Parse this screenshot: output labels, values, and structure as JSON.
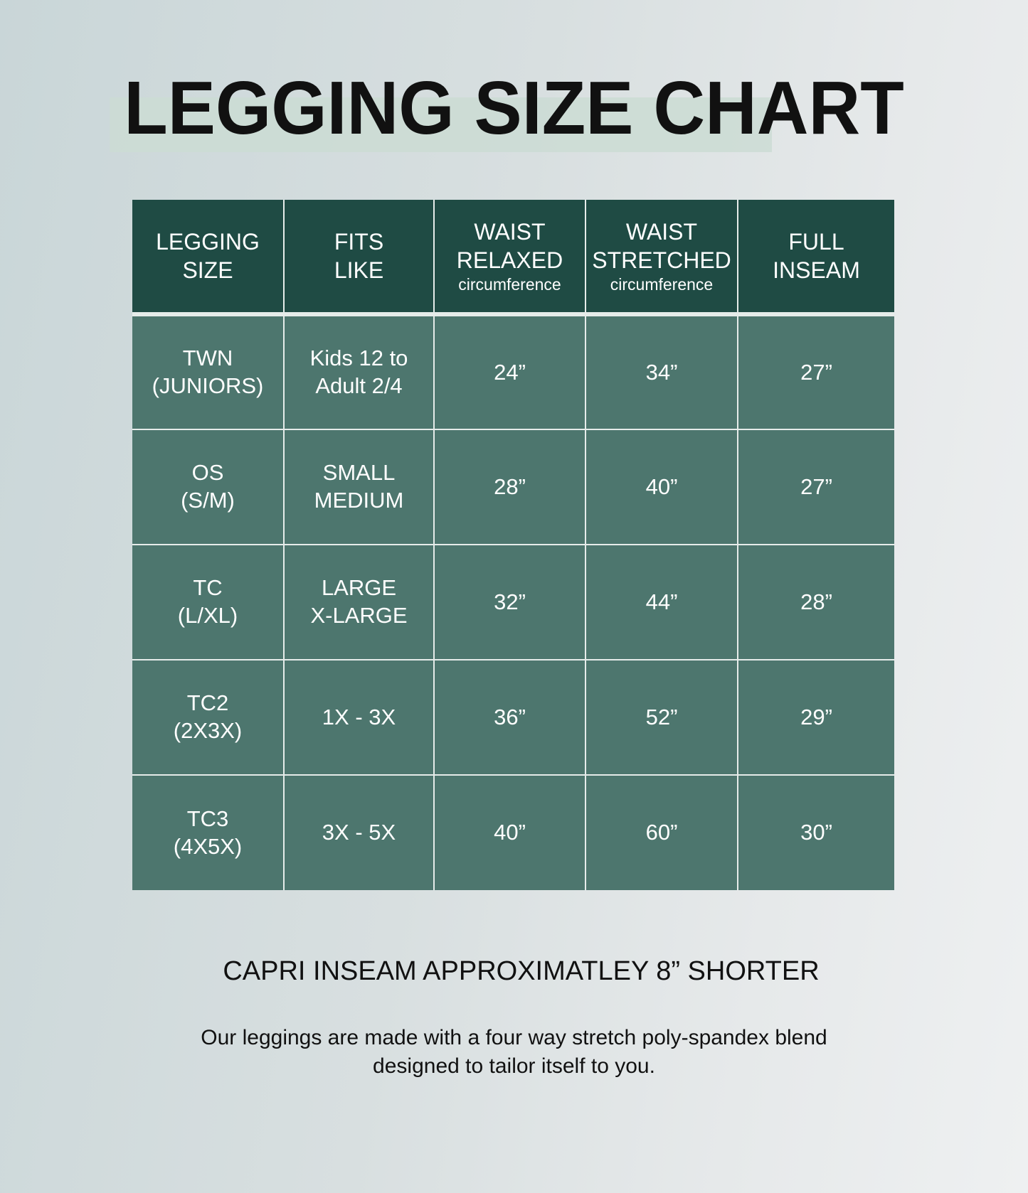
{
  "title": "LEGGING SIZE CHART",
  "table": {
    "headers": [
      {
        "line1": "LEGGING",
        "line2": "SIZE",
        "sub": ""
      },
      {
        "line1": "FITS",
        "line2": "LIKE",
        "sub": ""
      },
      {
        "line1": "WAIST",
        "line2": "RELAXED",
        "sub": "circumference"
      },
      {
        "line1": "WAIST",
        "line2": "STRETCHED",
        "sub": "circumference"
      },
      {
        "line1": "FULL",
        "line2": "INSEAM",
        "sub": ""
      }
    ],
    "rows": [
      {
        "size": [
          "TWN",
          "(JUNIORS)"
        ],
        "fits": [
          "Kids 12 to",
          "Adult 2/4"
        ],
        "relaxed": "24”",
        "stretched": "34”",
        "inseam": "27”"
      },
      {
        "size": [
          "OS",
          "(S/M)"
        ],
        "fits": [
          "SMALL",
          "MEDIUM"
        ],
        "relaxed": "28”",
        "stretched": "40”",
        "inseam": "27”"
      },
      {
        "size": [
          "TC",
          "(L/XL)"
        ],
        "fits": [
          "LARGE",
          "X-LARGE"
        ],
        "relaxed": "32”",
        "stretched": "44”",
        "inseam": "28”"
      },
      {
        "size": [
          "TC2",
          "(2X3X)"
        ],
        "fits": [
          "1X - 3X",
          ""
        ],
        "relaxed": "36”",
        "stretched": "52”",
        "inseam": "29”"
      },
      {
        "size": [
          "TC3",
          "(4X5X)"
        ],
        "fits": [
          "3X - 5X",
          ""
        ],
        "relaxed": "40”",
        "stretched": "60”",
        "inseam": "30”"
      }
    ]
  },
  "capri_note": "CAPRI INSEAM APPROXIMATLEY 8” SHORTER",
  "description": {
    "line1": "Our leggings are made with a four way stretch poly-spandex blend",
    "line2": "designed to tailor itself to you."
  },
  "colors": {
    "header": "#1f4b44",
    "cell": "#4d766e",
    "highlight": "#cbdcd3"
  }
}
